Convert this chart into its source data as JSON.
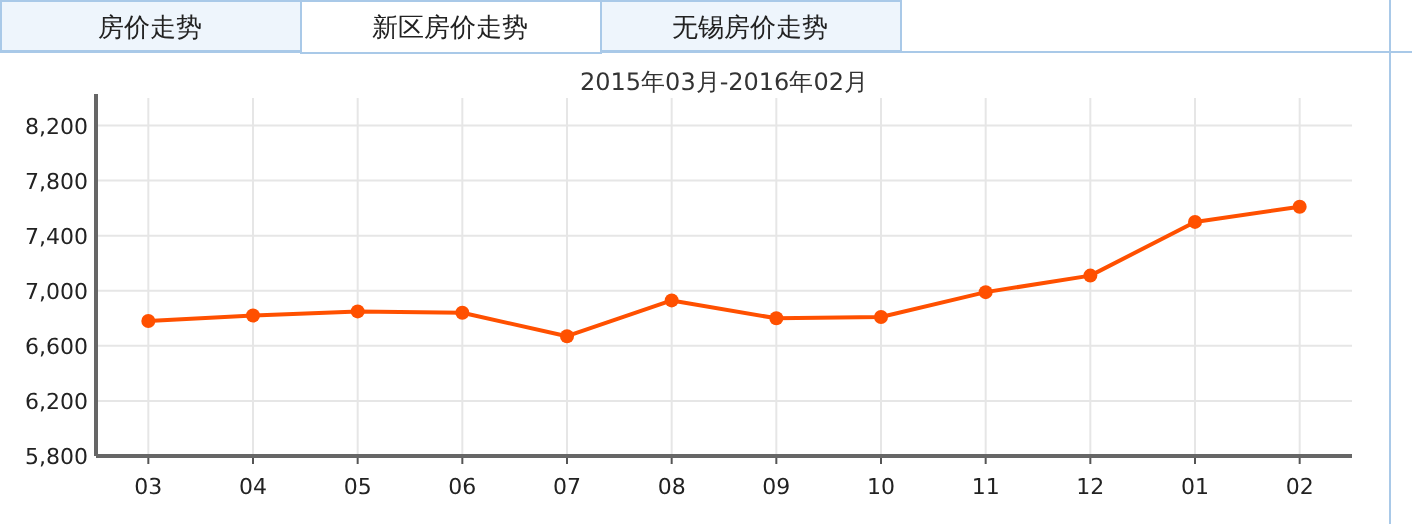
{
  "chart_data": {
    "type": "line",
    "title": "2015年03月-2016年02月",
    "annotations": [
      "房价走势",
      "新区房价走势",
      "无锡房价走势"
    ],
    "categories": [
      "03",
      "04",
      "05",
      "06",
      "07",
      "08",
      "09",
      "10",
      "11",
      "12",
      "01",
      "02"
    ],
    "series": [
      {
        "color": "#ff5000",
        "values": [
          6780,
          6820,
          6850,
          6840,
          6670,
          6930,
          6800,
          6810,
          6990,
          7110,
          7500,
          7610
        ]
      }
    ],
    "ylim": [
      5800,
      8400
    ],
    "yticks": [
      {
        "value": 5800,
        "label": "5,800"
      },
      {
        "value": 6200,
        "label": "6,200"
      },
      {
        "value": 6600,
        "label": "6,600"
      },
      {
        "value": 7000,
        "label": "7,000"
      },
      {
        "value": 7400,
        "label": "7,400"
      },
      {
        "value": 7800,
        "label": "7,800"
      },
      {
        "value": 8200,
        "label": "8,200"
      }
    ],
    "grid": true,
    "marker": "circle",
    "line_style": "solid"
  }
}
